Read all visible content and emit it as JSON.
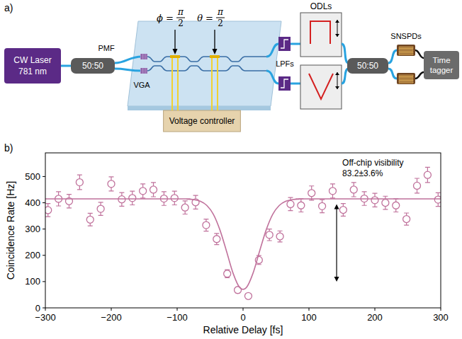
{
  "panels": [
    "a)",
    "b)"
  ],
  "diagram": {
    "laser": [
      "CW Laser",
      "781 nm"
    ],
    "splitters": [
      "50:50",
      "50:50"
    ],
    "fiber_label": "PMF",
    "coupler_label": "VGA",
    "phases": [
      {
        "symbol": "ϕ =",
        "numerator": "π",
        "denominator": "2"
      },
      {
        "symbol": "θ =",
        "numerator": "π",
        "denominator": "2"
      }
    ],
    "controller": "Voltage controller",
    "filters": "LPFs",
    "delays": "ODLs",
    "detectors": "SNSPDs",
    "tagger": [
      "Time",
      "tagger"
    ]
  },
  "chart_data": {
    "type": "scatter",
    "x_label": "Relative Delay [fs]",
    "y_label": "Coincidence Rate [Hz]",
    "xlim": [
      -300,
      300
    ],
    "xticks": [
      {
        "value": -300,
        "label": "−300"
      },
      {
        "value": -200,
        "label": "−200"
      },
      {
        "value": -100,
        "label": "−100"
      },
      0,
      100,
      200,
      300
    ],
    "ylim": [
      0,
      590
    ],
    "yticks": [
      0,
      100,
      200,
      300,
      400,
      500
    ],
    "grid": false,
    "series": [
      {
        "type": "scatter",
        "marker": "circle",
        "color": "#c0729c",
        "x": [
          -296,
          -280,
          -264,
          -248,
          -232,
          -216,
          -200,
          -184,
          -168,
          -152,
          -136,
          -120,
          -104,
          -88,
          -72,
          -56,
          -40,
          -24,
          -8,
          8,
          24,
          40,
          56,
          72,
          88,
          104,
          120,
          136,
          152,
          168,
          184,
          200,
          216,
          232,
          248,
          264,
          280,
          296
        ],
        "values": [
          372,
          415,
          406,
          478,
          336,
          377,
          472,
          413,
          418,
          445,
          450,
          416,
          418,
          382,
          402,
          315,
          262,
          130,
          68,
          45,
          182,
          278,
          272,
          395,
          390,
          437,
          387,
          445,
          373,
          450,
          416,
          410,
          400,
          390,
          338,
          465,
          506,
          412
        ],
        "errors": [
          25,
          27,
          26,
          28,
          24,
          25,
          27,
          26,
          26,
          27,
          27,
          26,
          26,
          25,
          26,
          23,
          21,
          15,
          11,
          10,
          17,
          22,
          21,
          25,
          25,
          27,
          25,
          27,
          24,
          27,
          26,
          26,
          25,
          25,
          23,
          28,
          29,
          26
        ]
      },
      {
        "type": "line",
        "line_style": "solid",
        "color": "#c0729c",
        "x": [
          -300,
          -100,
          -85,
          -75,
          -65,
          -55,
          -45,
          -35,
          -25,
          -15,
          -5,
          5,
          15,
          25,
          35,
          45,
          55,
          65,
          75,
          85,
          100,
          300
        ],
        "values": [
          415,
          415,
          414,
          412,
          406,
          390,
          356,
          296,
          215,
          131,
          77,
          77,
          131,
          215,
          296,
          356,
          390,
          406,
          412,
          414,
          415,
          415
        ]
      }
    ],
    "annotations": [
      {
        "text": [
          "Off-chip visibility",
          "83.2±3.6%"
        ],
        "x": 142,
        "y_from": 395,
        "y_to": 100
      }
    ]
  }
}
